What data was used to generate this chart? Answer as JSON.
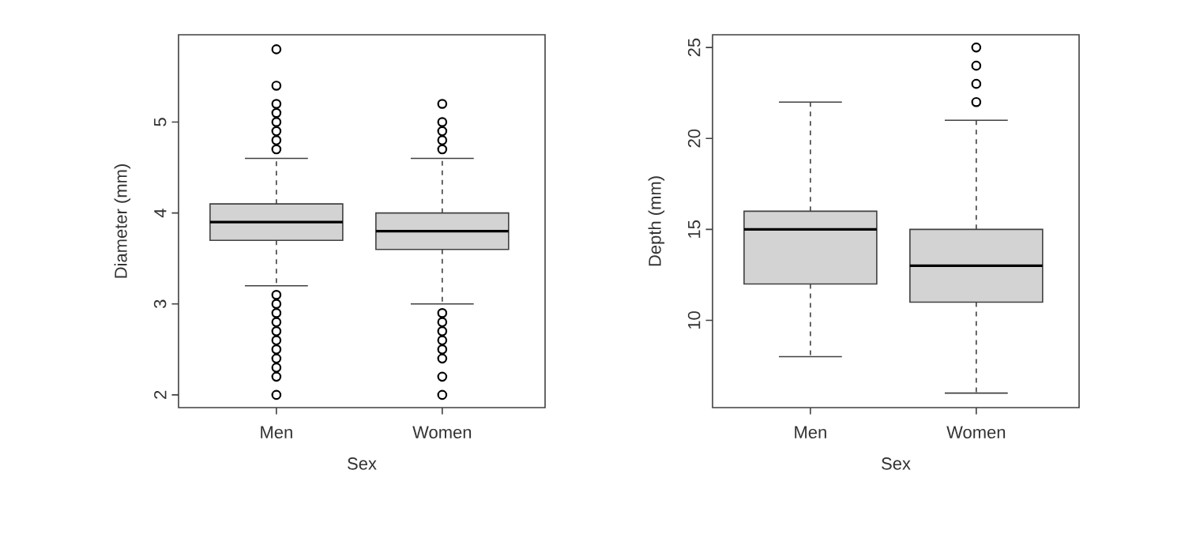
{
  "chart_data": [
    {
      "type": "box",
      "categories": [
        "Men",
        "Women"
      ],
      "xlabel": "Sex",
      "ylabel": "Diameter (mm)",
      "color": "#d3d3d3",
      "ylim": [
        1.86,
        5.96
      ],
      "yticks": [
        2,
        3,
        4,
        5
      ],
      "boxes": [
        {
          "low": 3.2,
          "q1": 3.7,
          "median": 3.9,
          "q3": 4.1,
          "high": 4.6,
          "outliers": [
            4.7,
            4.8,
            4.9,
            5.0,
            5.1,
            5.2,
            5.4,
            5.8,
            3.1,
            3.0,
            2.9,
            2.8,
            2.7,
            2.6,
            2.5,
            2.4,
            2.3,
            2.2,
            2.0
          ]
        },
        {
          "low": 3.0,
          "q1": 3.6,
          "median": 3.8,
          "q3": 4.0,
          "high": 4.6,
          "outliers": [
            4.7,
            4.8,
            4.9,
            5.0,
            5.2,
            2.9,
            2.8,
            2.7,
            2.6,
            2.5,
            2.4,
            2.2,
            2.0
          ]
        }
      ]
    },
    {
      "type": "box",
      "categories": [
        "Men",
        "Women"
      ],
      "xlabel": "Sex",
      "ylabel": "Depth (mm)",
      "color": "#d3d3d3",
      "ylim": [
        5.2,
        25.7
      ],
      "yticks": [
        10,
        15,
        20,
        25
      ],
      "boxes": [
        {
          "low": 8,
          "q1": 12,
          "median": 15,
          "q3": 16,
          "high": 22
        },
        {
          "low": 6,
          "q1": 11,
          "median": 13,
          "q3": 15,
          "high": 21,
          "outliers": [
            22,
            23,
            24,
            25
          ]
        }
      ]
    }
  ]
}
